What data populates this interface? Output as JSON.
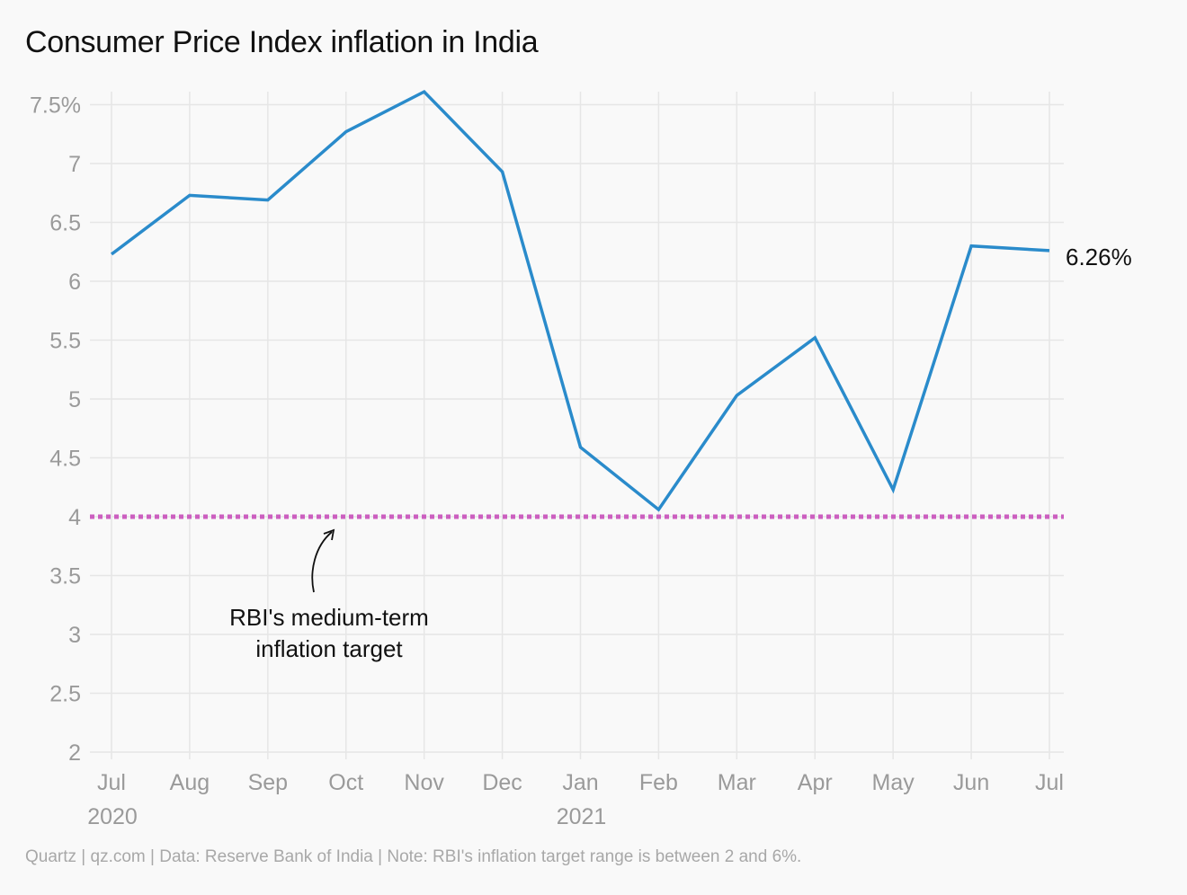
{
  "title": "Consumer Price Index inflation in India",
  "footer": "Quartz | qz.com | Data: Reserve Bank of India | Note: RBI's inflation target range is between 2 and 6%.",
  "colors": {
    "line": "#2a8bcb",
    "target": "#cc5fc0",
    "grid": "#e6e6e6",
    "axis_text": "#9a9a9a"
  },
  "chart_data": {
    "type": "line",
    "title": "Consumer Price Index inflation in India",
    "categories": [
      "Jul",
      "Aug",
      "Sep",
      "Oct",
      "Nov",
      "Dec",
      "Jan",
      "Feb",
      "Mar",
      "Apr",
      "May",
      "Jun",
      "Jul"
    ],
    "year_labels": [
      {
        "index": 0,
        "label": "2020"
      },
      {
        "index": 6,
        "label": "2021"
      }
    ],
    "series": [
      {
        "values": [
          6.23,
          6.73,
          6.69,
          7.27,
          7.61,
          6.93,
          4.59,
          4.06,
          5.03,
          5.52,
          4.23,
          6.3,
          6.26
        ]
      }
    ],
    "y_ticks": [
      "2",
      "2.5",
      "3",
      "3.5",
      "4",
      "4.5",
      "5",
      "5.5",
      "6",
      "6.5",
      "7",
      "7.5%"
    ],
    "y_tick_values": [
      2,
      2.5,
      3,
      3.5,
      4,
      4.5,
      5,
      5.5,
      6,
      6.5,
      7,
      7.5
    ],
    "ylim": [
      2,
      7.6
    ],
    "grid": true,
    "end_label": "6.26%",
    "reference_line": {
      "value": 4,
      "style": "dotted"
    },
    "annotation": {
      "lines": [
        "RBI's medium-term",
        "inflation target"
      ]
    }
  }
}
